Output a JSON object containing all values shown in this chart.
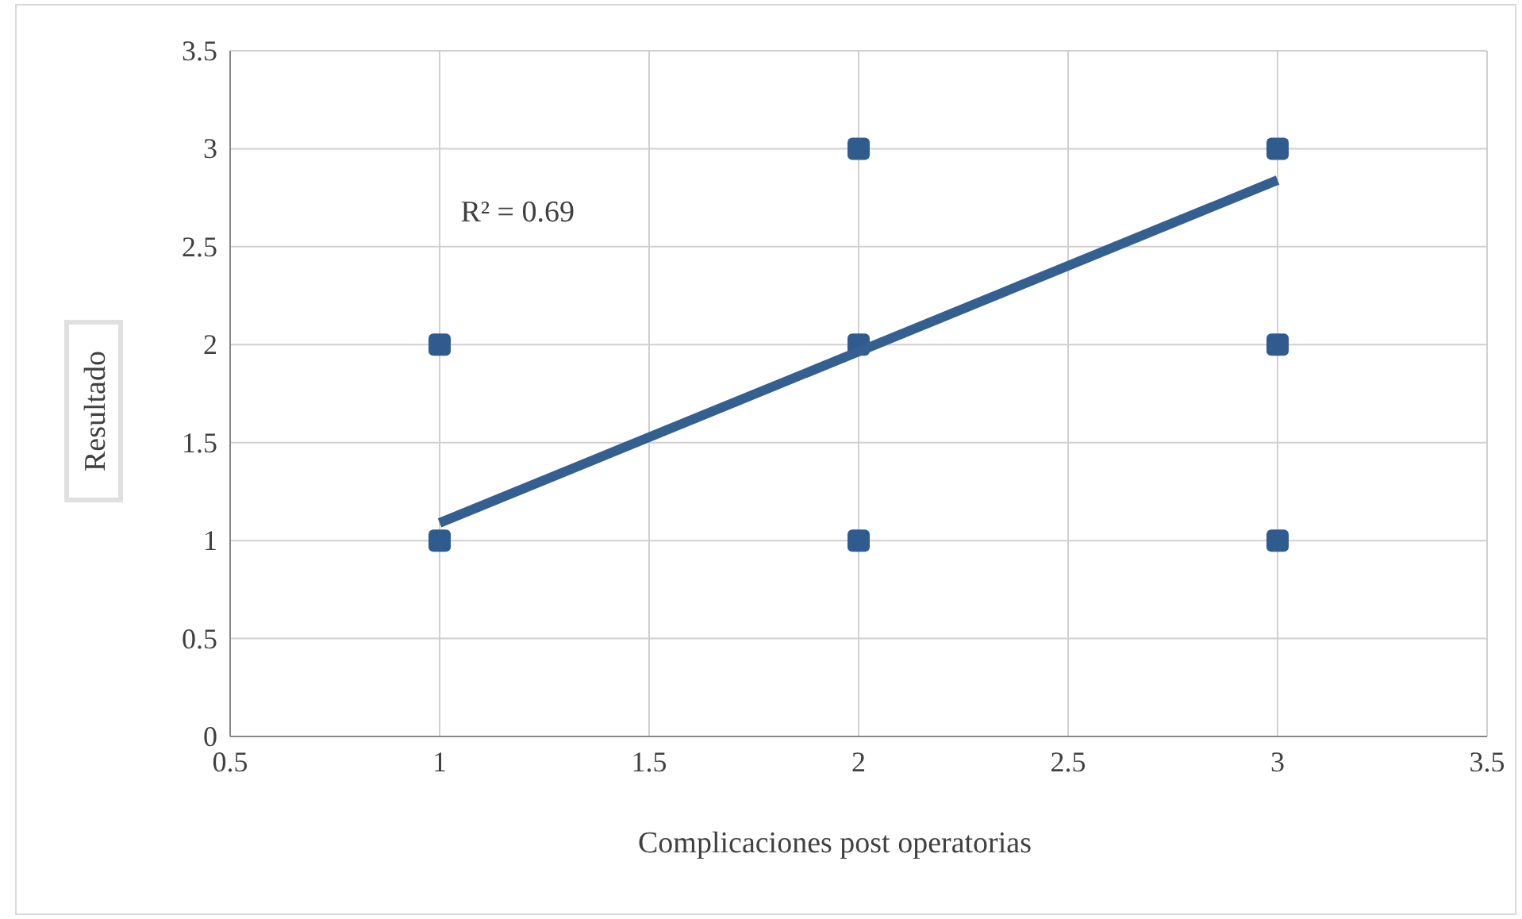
{
  "chart_data": {
    "type": "scatter",
    "xlabel": "Complicaciones post operatorias",
    "ylabel": "Resultado",
    "xlim": [
      0.5,
      3.5
    ],
    "xticks": [
      0.5,
      1,
      1.5,
      2,
      2.5,
      3,
      3.5
    ],
    "ylim": [
      0,
      3.5
    ],
    "yticks": [
      0,
      0.5,
      1,
      1.5,
      2,
      2.5,
      3,
      3.5
    ],
    "grid": true,
    "series": [
      {
        "marker": "square",
        "color": "#2f5b8f",
        "x": [
          1,
          1,
          2,
          2,
          2,
          3,
          3,
          3
        ],
        "values": [
          1,
          2,
          1,
          2,
          3,
          1,
          2,
          3
        ]
      },
      {
        "type": "line",
        "marker": "none",
        "color": "#345f91",
        "x": [
          1,
          3
        ],
        "values": [
          1.09,
          2.84
        ]
      }
    ],
    "annotations": [
      "R² = 0.69"
    ]
  }
}
